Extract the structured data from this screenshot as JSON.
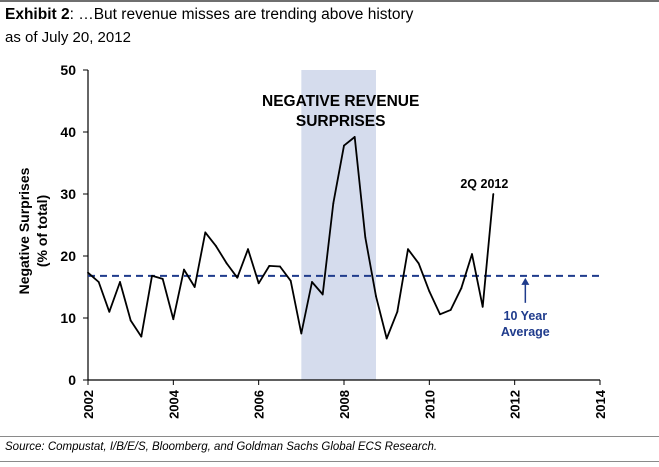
{
  "header": {
    "exhibit_label": "Exhibit 2",
    "title_text": ": …But revenue misses are trending above history",
    "subtitle": "as of July 20, 2012"
  },
  "footer": {
    "source": "Source: Compustat, I/B/E/S, Bloomberg, and Goldman Sachs Global ECS Research."
  },
  "colors": {
    "series_line": "#000000",
    "average_line": "#1f3b8c",
    "shaded_region": "#d5dced",
    "average_label": "#1f3b8c"
  },
  "chart_data": {
    "type": "line",
    "title": "",
    "xlabel": "",
    "ylabel": [
      "Negative Surprises",
      "(% of total)"
    ],
    "xlim": [
      2002,
      2014
    ],
    "ylim": [
      0,
      50
    ],
    "x_ticks": [
      2002,
      2004,
      2006,
      2008,
      2010,
      2012,
      2014
    ],
    "x_tick_labels": [
      "2002",
      "2004",
      "2006",
      "2008",
      "2010",
      "2012",
      "2014"
    ],
    "y_ticks": [
      0,
      10,
      20,
      30,
      40,
      50
    ],
    "y_tick_labels": [
      "0",
      "10",
      "20",
      "30",
      "40",
      "50"
    ],
    "grid": false,
    "series": [
      {
        "name": "Negative Surprises (% of total)",
        "x": [
          2002.0,
          2002.25,
          2002.5,
          2002.75,
          2003.0,
          2003.25,
          2003.5,
          2003.75,
          2004.0,
          2004.25,
          2004.5,
          2004.75,
          2005.0,
          2005.25,
          2005.5,
          2005.75,
          2006.0,
          2006.25,
          2006.5,
          2006.75,
          2007.0,
          2007.25,
          2007.5,
          2007.75,
          2008.0,
          2008.25,
          2008.5,
          2008.75,
          2009.0,
          2009.25,
          2009.5,
          2009.75,
          2010.0,
          2010.25,
          2010.5,
          2010.75,
          2011.0,
          2011.25,
          2011.5
        ],
        "y": [
          17.3,
          15.8,
          11.0,
          15.8,
          9.6,
          7.0,
          16.8,
          16.3,
          9.8,
          17.8,
          15.0,
          23.8,
          21.6,
          18.8,
          16.5,
          21.1,
          15.6,
          18.4,
          18.3,
          16.0,
          7.5,
          15.8,
          13.8,
          28.5,
          37.8,
          39.2,
          23.0,
          13.5,
          6.7,
          11.0,
          21.1,
          18.8,
          14.3,
          10.6,
          11.3,
          14.8,
          20.3,
          11.8,
          30.0
        ]
      },
      {
        "name": "10 Year Average",
        "x": [
          2002,
          2014
        ],
        "y": [
          16.8,
          16.8
        ]
      }
    ],
    "shaded_range": [
      2007.0,
      2008.75
    ],
    "annotations": {
      "shaded_label": [
        "NEGATIVE REVENUE",
        "SURPRISES"
      ],
      "latest_point_label": "2Q 2012",
      "average_label": [
        "10 Year",
        "Average"
      ]
    }
  }
}
